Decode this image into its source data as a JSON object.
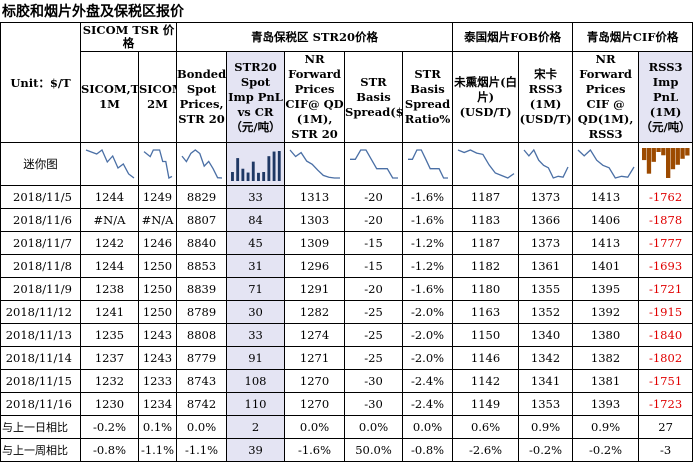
{
  "title": "标胶和烟片外盘及保税区报价",
  "groups": {
    "sicom": "SICOM TSR 价格",
    "qingdao": "青岛保税区 STR20价格",
    "thai": "泰国烟片FOB价格",
    "cif": "青岛烟片CIF价格"
  },
  "unit_label": "Unit：$/T",
  "mini_chart_label": "迷你图",
  "columns": [
    "SICOM,TSR, 1M",
    "SICOM,TSR, 2M",
    "Bonded Spot Prices, STR 20",
    "STR20 Spot Imp PnL vs CR（元/吨）",
    "NR Forward Prices CIF@ QD (1M), STR 20",
    "STR Basis Spread($/T)",
    "STR Basis Spread Ratio%",
    "未熏烟片(白片) (USD/T)",
    "宋卡 RSS3 (1M) (USD/T)",
    "NR Forward Prices CIF @ QD(1M), RSS3",
    "RSS3 Imp PnL (1M)（元/吨）"
  ],
  "rows": [
    {
      "date": "2018/11/5",
      "v": [
        "1244",
        "1249",
        "8829",
        "33",
        "1313",
        "-20",
        "-1.6%",
        "1187",
        "1373",
        "1413",
        "-1762"
      ]
    },
    {
      "date": "2018/11/6",
      "v": [
        "#N/A",
        "#N/A",
        "8807",
        "84",
        "1303",
        "-20",
        "-1.6%",
        "1183",
        "1366",
        "1406",
        "-1878"
      ]
    },
    {
      "date": "2018/11/7",
      "v": [
        "1242",
        "1246",
        "8840",
        "45",
        "1309",
        "-15",
        "-1.2%",
        "1187",
        "1373",
        "1413",
        "-1777"
      ]
    },
    {
      "date": "2018/11/8",
      "v": [
        "1244",
        "1250",
        "8853",
        "31",
        "1296",
        "-15",
        "-1.2%",
        "1182",
        "1361",
        "1401",
        "-1693"
      ]
    },
    {
      "date": "2018/11/9",
      "v": [
        "1238",
        "1250",
        "8839",
        "71",
        "1291",
        "-20",
        "-1.6%",
        "1180",
        "1355",
        "1395",
        "-1721"
      ]
    },
    {
      "date": "2018/11/12",
      "v": [
        "1241",
        "1250",
        "8789",
        "30",
        "1282",
        "-25",
        "-2.0%",
        "1163",
        "1352",
        "1392",
        "-1915"
      ]
    },
    {
      "date": "2018/11/13",
      "v": [
        "1235",
        "1243",
        "8808",
        "33",
        "1274",
        "-25",
        "-2.0%",
        "1150",
        "1340",
        "1380",
        "-1840"
      ]
    },
    {
      "date": "2018/11/14",
      "v": [
        "1237",
        "1243",
        "8779",
        "91",
        "1271",
        "-25",
        "-2.0%",
        "1146",
        "1342",
        "1382",
        "-1802"
      ]
    },
    {
      "date": "2018/11/15",
      "v": [
        "1232",
        "1233",
        "8743",
        "108",
        "1270",
        "-30",
        "-2.4%",
        "1142",
        "1341",
        "1381",
        "-1751"
      ]
    },
    {
      "date": "2018/11/16",
      "v": [
        "1230",
        "1234",
        "8742",
        "110",
        "1270",
        "-30",
        "-2.4%",
        "1149",
        "1353",
        "1393",
        "-1723"
      ]
    }
  ],
  "compare": [
    {
      "label": "与上一日相比",
      "v": [
        "-0.2%",
        "0.1%",
        "0.0%",
        "2",
        "0.0%",
        "0.0%",
        "0.0%",
        "0.6%",
        "0.9%",
        "0.9%",
        "27"
      ]
    },
    {
      "label": "与上一周相比",
      "v": [
        "-0.8%",
        "-1.1%",
        "-1.1%",
        "39",
        "-1.6%",
        "50.0%",
        "-0.8%",
        "-2.6%",
        "-0.2%",
        "-0.2%",
        "-3"
      ]
    }
  ],
  "colors": {
    "line": "#4a6fa5",
    "bar_pos": "#1f3864",
    "bar_neg": "#9c4a00",
    "highlight": "#e4e4f3",
    "negative_text": "#e00000"
  }
}
